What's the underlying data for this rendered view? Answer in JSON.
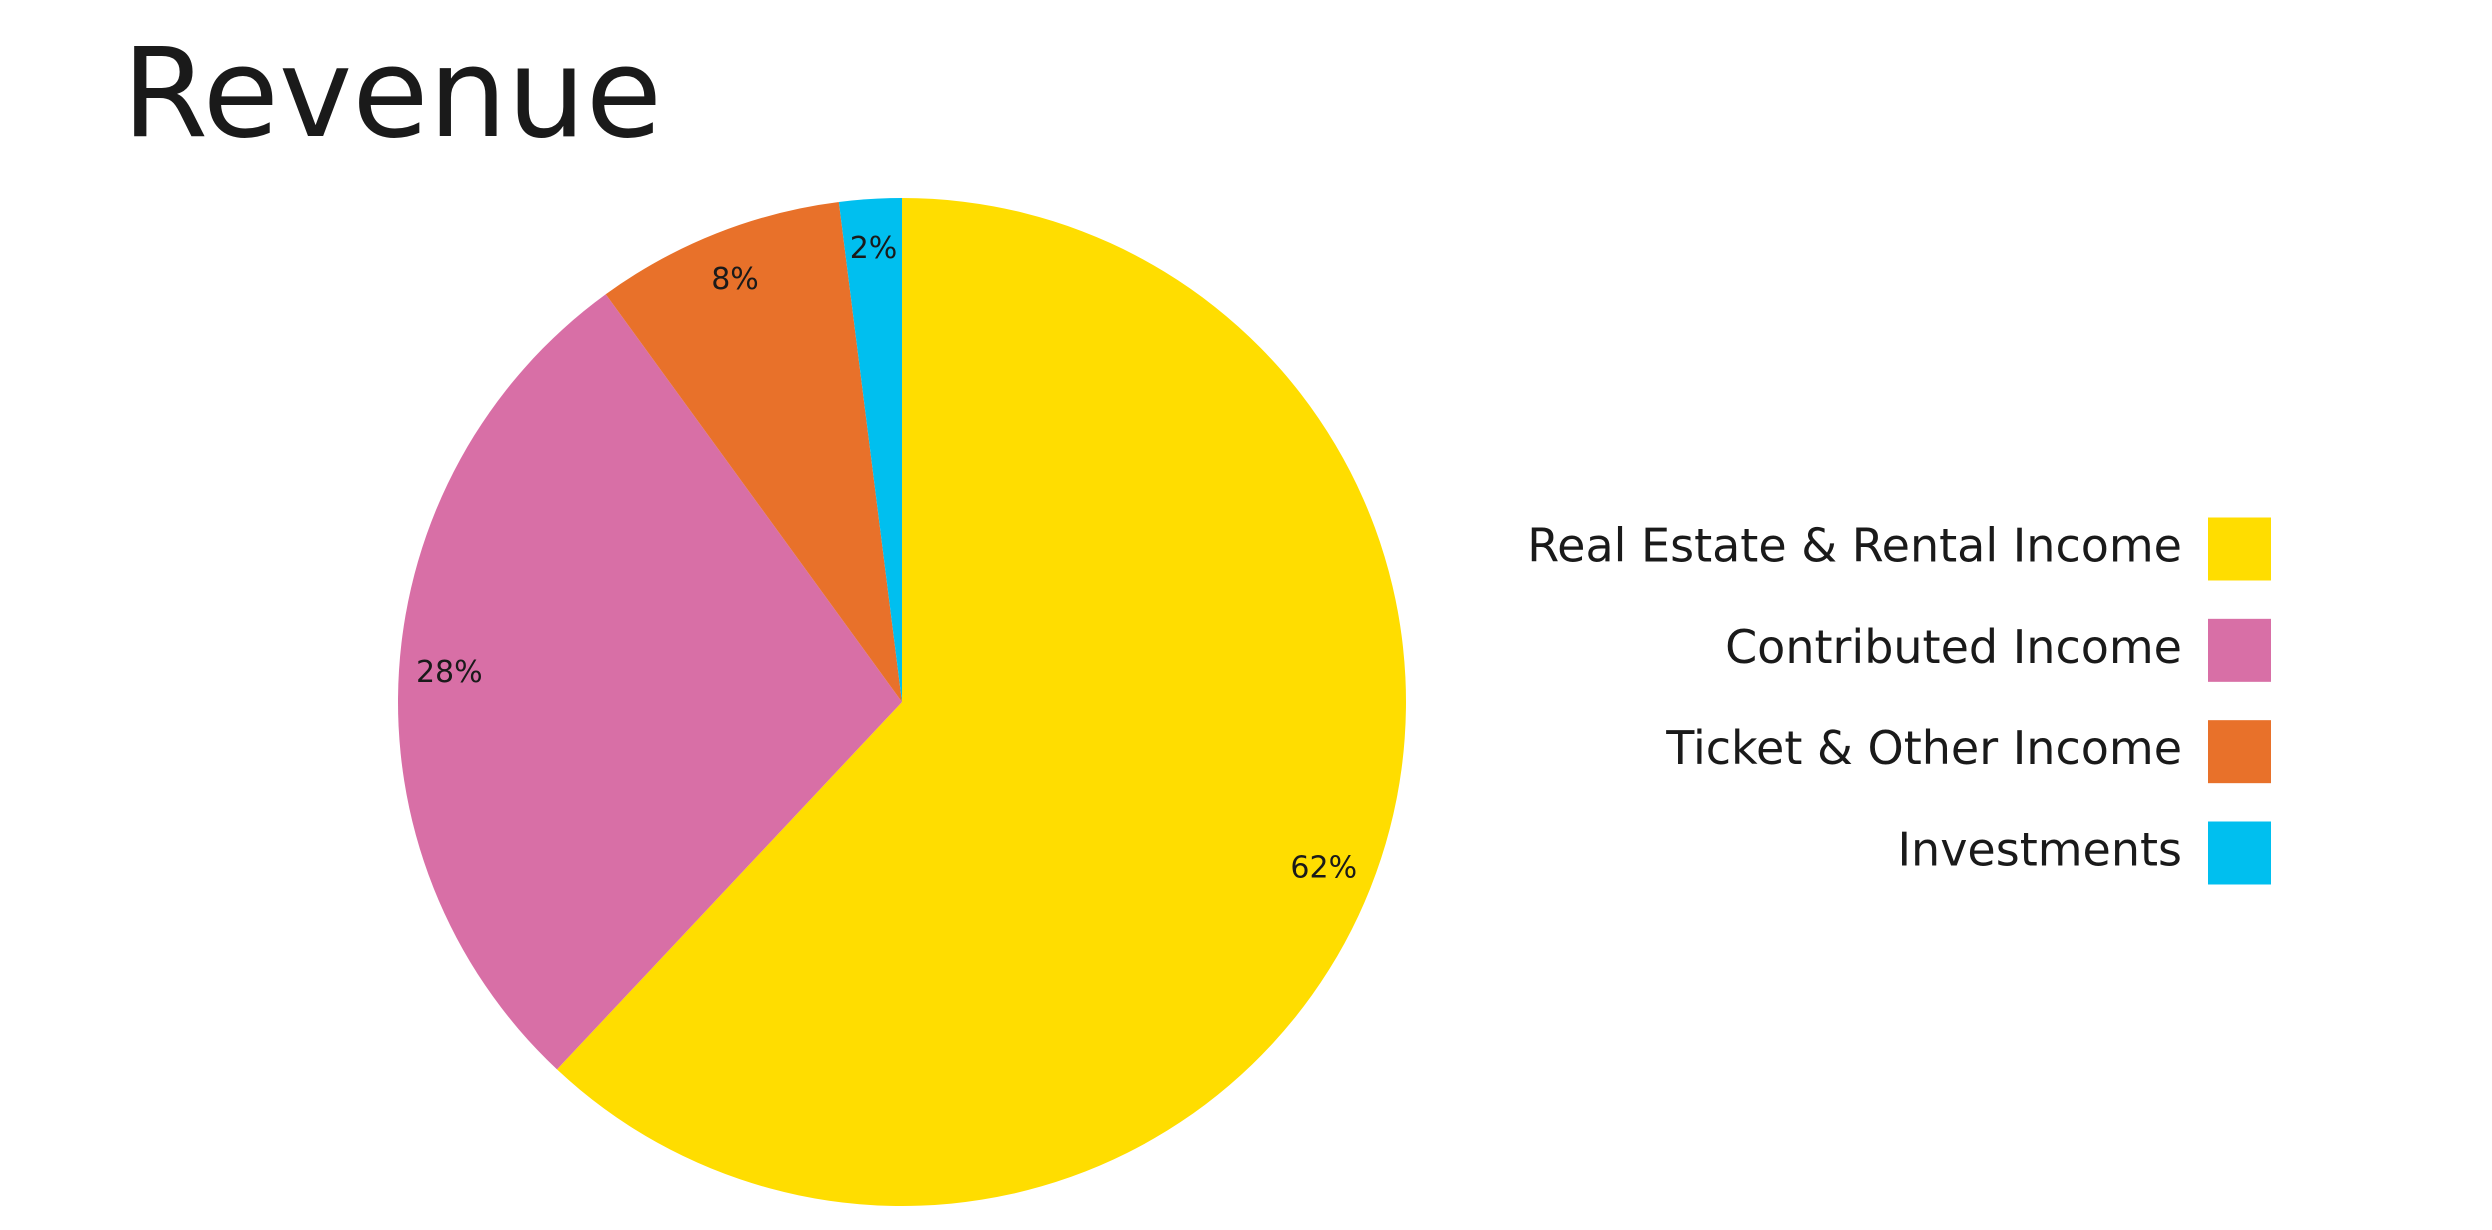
{
  "chart_data": {
    "type": "pie",
    "title": "Revenue",
    "categories": [
      "Real Estate & Rental Income",
      "Contributed Income",
      "Ticket & Other Income",
      "Investments"
    ],
    "values": [
      62,
      28,
      8,
      2
    ],
    "value_labels": [
      "62%",
      "28%",
      "8%",
      "2%"
    ],
    "colors": [
      "#FFDD00",
      "#D86FA6",
      "#E8712A",
      "#00BFEF"
    ],
    "legend": "right"
  }
}
